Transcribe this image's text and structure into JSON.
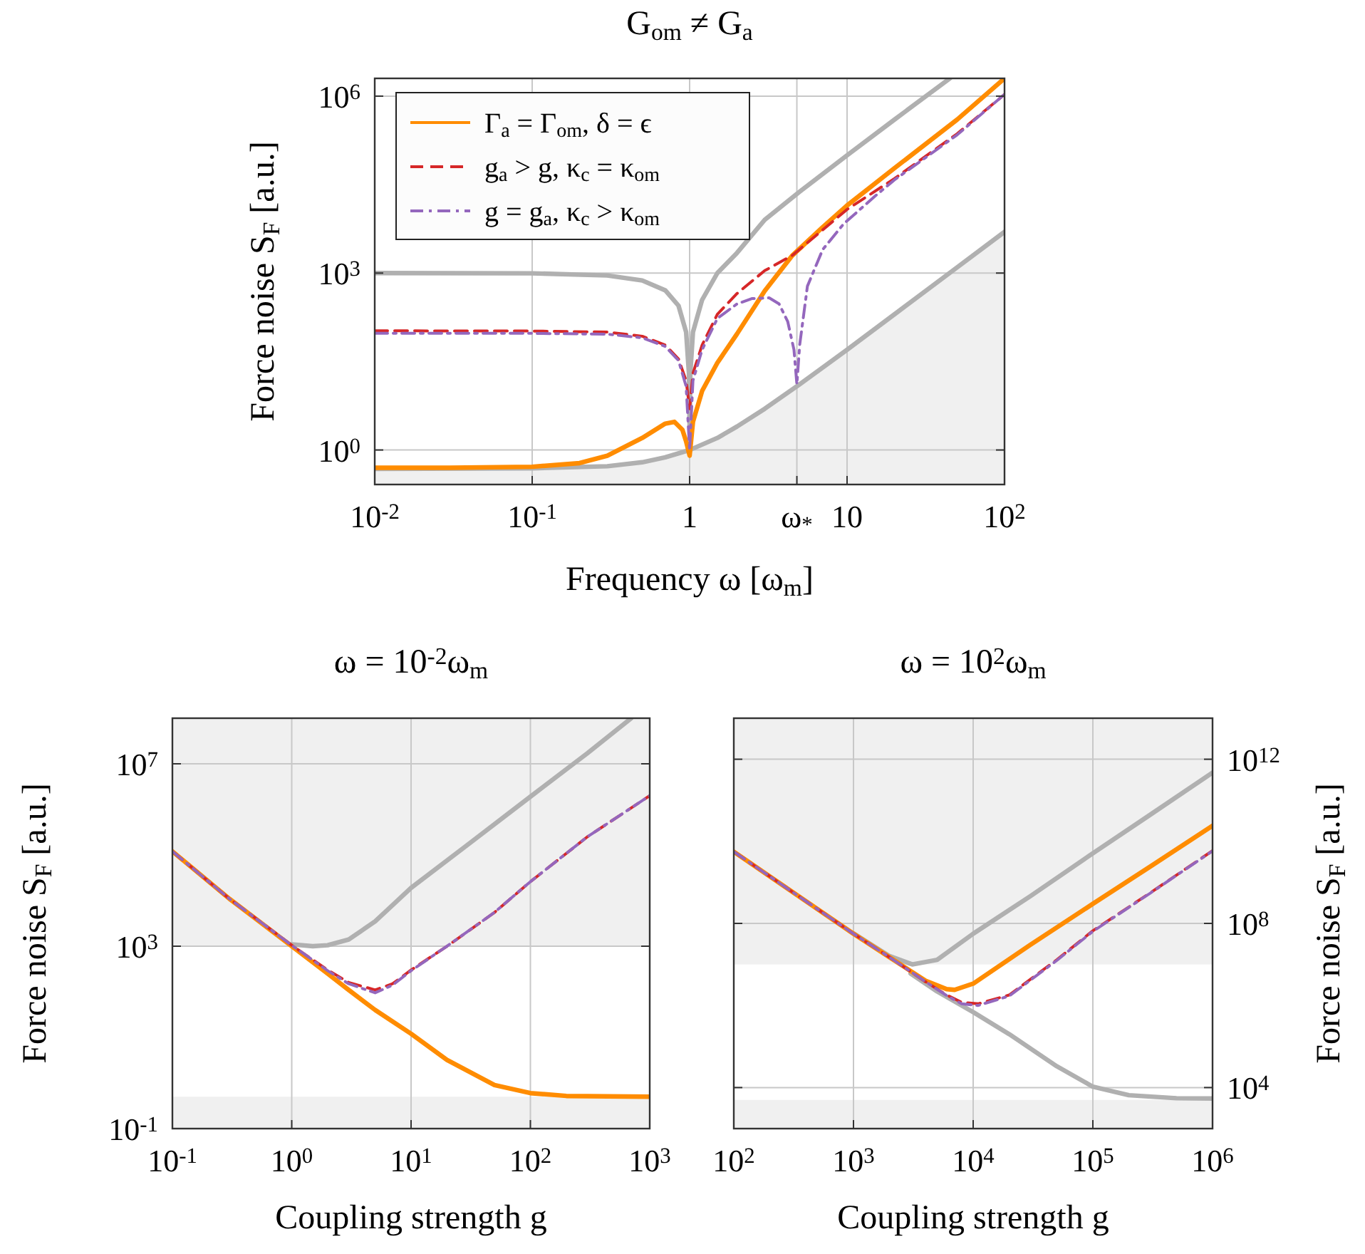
{
  "chart_data": [
    {
      "type": "line",
      "title": "G$_{om}$ ≠ G$_{a}$",
      "xlabel": "Frequency ω [ω$_{m}$]",
      "ylabel": "Force noise S$_{F}$ [a.u.]",
      "log": "xy",
      "grid": true,
      "legend": "top left",
      "xlim": [
        0.01,
        100
      ],
      "xticks": [
        {
          "value": 0.01,
          "label": "10$^{-2}$"
        },
        {
          "value": 0.1,
          "label": "10$^{-1}$"
        },
        1,
        {
          "value": 4.8,
          "label": "ω$_{*}$"
        },
        10,
        {
          "value": 100,
          "label": "10$^{2}$"
        }
      ],
      "ylim": [
        0.26,
        2000000
      ],
      "yticks": [
        {
          "value": 1,
          "label": "10$^{0}$"
        },
        {
          "value": 1000,
          "label": "10$^{3}$"
        },
        {
          "value": 1000000,
          "label": "10$^{6}$"
        }
      ],
      "series": [
        {
          "type": "area",
          "color": "#b0b0b0",
          "x": [
            0.01,
            0.1,
            0.3,
            0.5,
            0.7,
            1,
            1.5,
            2,
            3,
            5,
            10,
            20,
            50,
            100
          ],
          "values": [
            0.48,
            0.49,
            0.53,
            0.62,
            0.75,
            1,
            1.6,
            2.5,
            5,
            13,
            50,
            200,
            1250,
            5000
          ]
        },
        {
          "type": "line",
          "color": "#b0b0b0",
          "x": [
            0.01,
            0.1,
            0.3,
            0.5,
            0.7,
            0.85,
            0.95,
            0.99,
            1,
            1.01,
            1.05,
            1.2,
            1.5,
            2,
            3,
            5,
            10,
            20,
            45
          ],
          "values": [
            1000,
            990,
            910,
            750,
            510,
            280,
            100,
            20,
            2.5,
            20,
            100,
            350,
            1000,
            2200,
            8000,
            24000,
            99000,
            400000,
            2000000
          ]
        },
        {
          "name": "Γ$_{a}$ = Γ$_{om}$, δ = ϵ",
          "color": "#ff8c00",
          "line_style": "solid",
          "x": [
            0.01,
            0.03,
            0.1,
            0.2,
            0.3,
            0.5,
            0.7,
            0.8,
            0.9,
            0.95,
            1,
            1.05,
            1.2,
            1.5,
            2,
            3,
            4.5,
            7,
            10,
            20,
            50,
            100
          ],
          "values": [
            0.5,
            0.5,
            0.52,
            0.6,
            0.8,
            1.6,
            2.8,
            3,
            2.2,
            1.4,
            0.8,
            3,
            10,
            30,
            93,
            500,
            2000,
            6000,
            14000,
            60000,
            400000,
            2000000
          ]
        },
        {
          "name": "g$_{a}$ > g, κ$_{c}$ = κ$_{om}$",
          "color": "#d62728",
          "line_style": "dashed",
          "x": [
            0.01,
            0.1,
            0.3,
            0.5,
            0.7,
            0.85,
            0.95,
            1,
            1.05,
            1.2,
            1.5,
            2,
            3,
            4.5,
            10,
            20,
            50,
            100
          ],
          "values": [
            105,
            104,
            100,
            85,
            60,
            35,
            15,
            5,
            20,
            60,
            200,
            450,
            1100,
            2000,
            12000,
            40000,
            230000,
            1070000
          ]
        },
        {
          "name": "g = g$_{a}$, κ$_{c}$ > κ$_{om}$",
          "color": "#9467bd",
          "line_style": "dashdot",
          "x": [
            0.01,
            0.1,
            0.3,
            0.5,
            0.7,
            0.85,
            0.95,
            1,
            1.05,
            1.2,
            1.5,
            2,
            2.5,
            3.2,
            3.7,
            4.2,
            4.6,
            4.8,
            5,
            5.6,
            7,
            9.5,
            15,
            20,
            50,
            100
          ],
          "values": [
            95,
            95,
            92,
            80,
            57,
            33,
            12,
            1,
            15,
            50,
            170,
            300,
            370,
            380,
            300,
            150,
            50,
            13,
            60,
            600,
            2500,
            6800,
            20000,
            38000,
            220000,
            1070000
          ]
        }
      ]
    },
    {
      "type": "line",
      "title": "ω = 10$^{-2}$ω$_{m}$",
      "xlabel": "Coupling strength g",
      "ylabel": "Force noise S$_{F}$ [a.u.]",
      "log": "xy",
      "grid": true,
      "xlim": [
        0.1,
        1000
      ],
      "xticks": [
        {
          "value": 0.1,
          "label": "10$^{-1}$"
        },
        {
          "value": 1,
          "label": "10$^{0}$"
        },
        {
          "value": 10,
          "label": "10$^{1}$"
        },
        {
          "value": 100,
          "label": "10$^{2}$"
        },
        {
          "value": 1000,
          "label": "10$^{3}$"
        }
      ],
      "ylim": [
        0.1,
        100000000
      ],
      "yticks": [
        {
          "value": 0.1,
          "label": "10$^{-1}$"
        },
        {
          "value": 1000,
          "label": "10$^{3}$"
        },
        {
          "value": 10000000,
          "label": "10$^{7}$"
        }
      ],
      "bands": [
        {
          "axis": "y",
          "from": 1000,
          "to": 100000000,
          "color": "#f0f0f0"
        },
        {
          "axis": "y",
          "from": 0.1,
          "to": 0.5,
          "color": "#f0f0f0"
        }
      ],
      "series": [
        {
          "type": "line",
          "color": "#b0b0b0",
          "x": [
            1,
            1.5,
            2,
            3,
            5,
            10,
            30,
            100,
            300,
            700
          ],
          "values": [
            1100,
            1000,
            1050,
            1400,
            3500,
            19000,
            170000,
            1900000,
            17000000,
            100000000
          ]
        },
        {
          "color": "#ff8c00",
          "line_style": "solid",
          "x": [
            0.1,
            0.3,
            1,
            2,
            3,
            5,
            10,
            20,
            50,
            100,
            200,
            1000
          ],
          "values": [
            120000,
            11000,
            1000,
            250,
            110,
            40,
            12,
            3.2,
            0.9,
            0.6,
            0.52,
            0.5
          ]
        },
        {
          "color": "#d62728",
          "line_style": "dashed",
          "x": [
            0.1,
            0.3,
            1,
            2,
            3,
            5,
            7,
            10,
            20,
            50,
            100,
            300,
            1000
          ],
          "values": [
            120000,
            11000,
            1050,
            300,
            160,
            110,
            150,
            300,
            1000,
            5500,
            26000,
            250000,
            2000000
          ]
        },
        {
          "color": "#9467bd",
          "line_style": "dashdot",
          "x": [
            0.1,
            0.3,
            1,
            2,
            3,
            5,
            7,
            10,
            20,
            50,
            100,
            300,
            1000
          ],
          "values": [
            120000,
            11000,
            1050,
            290,
            150,
            95,
            140,
            290,
            1000,
            5500,
            26000,
            250000,
            2000000
          ]
        }
      ]
    },
    {
      "type": "line",
      "title": "ω = 10$^{2}$ω$_{m}$",
      "xlabel": "Coupling strength g",
      "ylabel": "Force noise S$_{F}$ [a.u.]",
      "log": "xy",
      "grid": true,
      "xlim": [
        100,
        1000000
      ],
      "xticks": [
        {
          "value": 100,
          "label": "10$^{2}$"
        },
        {
          "value": 1000,
          "label": "10$^{3}$"
        },
        {
          "value": 10000,
          "label": "10$^{4}$"
        },
        {
          "value": 100000,
          "label": "10$^{5}$"
        },
        {
          "value": 1000000,
          "label": "10$^{6}$"
        }
      ],
      "ylim": [
        1000,
        10000000000000
      ],
      "yticks": [
        {
          "value": 10000,
          "label": "10$^{4}$"
        },
        {
          "value": 100000000,
          "label": "10$^{8}$"
        },
        {
          "value": 1000000000000,
          "label": "10$^{12}$"
        }
      ],
      "bands": [
        {
          "axis": "y",
          "from": 10000000,
          "to": 10000000000000,
          "color": "#f0f0f0"
        },
        {
          "axis": "y",
          "from": 1000,
          "to": 5000,
          "color": "#f0f0f0"
        }
      ],
      "series": [
        {
          "type": "line",
          "color": "#b0b0b0",
          "x": [
            1000,
            2000,
            3100,
            5000,
            10000,
            30000,
            100000,
            300000,
            1000000
          ],
          "values": [
            57000000,
            16000000,
            10000000,
            13000000,
            56000000,
            460000000,
            5100000000,
            44000000000,
            470000000000
          ]
        },
        {
          "type": "line",
          "color": "#b0b0b0",
          "x": [
            3000,
            5000,
            10000,
            20000,
            50000,
            100000,
            200000,
            500000,
            1000000
          ],
          "values": [
            6000000,
            2200000,
            690000,
            200000,
            33000,
            10500,
            6500,
            5500,
            5400
          ]
        },
        {
          "color": "#ff8c00",
          "line_style": "solid",
          "x": [
            100,
            300,
            1000,
            2000,
            4000,
            6000,
            7000,
            10000,
            30000,
            100000,
            300000,
            1000000
          ],
          "values": [
            5600000000,
            620000000,
            56000000,
            15000000,
            4000000,
            2500000,
            2400000,
            3400000,
            30000000,
            300000000,
            2400000000,
            24000000000
          ]
        },
        {
          "color": "#d62728",
          "line_style": "dashed",
          "x": [
            100,
            300,
            1000,
            2000,
            4000,
            6000,
            8000,
            11000,
            20000,
            50000,
            100000,
            300000,
            1000000
          ],
          "values": [
            5600000000,
            620000000,
            56000000,
            15000000,
            3800000,
            1800000,
            1200000,
            1100000,
            1800000,
            13000000,
            66000000,
            550000000,
            5900000000
          ]
        },
        {
          "color": "#9467bd",
          "line_style": "dashdot",
          "x": [
            100,
            300,
            1000,
            2000,
            4000,
            6000,
            8000,
            11000,
            20000,
            50000,
            100000,
            300000,
            1000000
          ],
          "values": [
            5600000000,
            620000000,
            56000000,
            15000000,
            3800000,
            1750000,
            1100000,
            1000000,
            1700000,
            12500000,
            64000000,
            540000000,
            5800000000
          ]
        }
      ]
    }
  ]
}
